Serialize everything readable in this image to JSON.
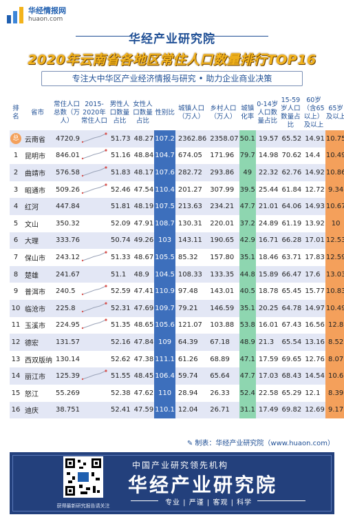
{
  "logo": {
    "cn": "华经情报网",
    "en": "huaon.com"
  },
  "brand": "华经产业研究院",
  "title": "2020年云南省各地区常住人口数量排行TOP16",
  "subtitle": "专注大中华区产业经济情报与研究 • 助力企业商业决策",
  "headers": {
    "rank": "排名",
    "city": "省市",
    "pop": "常住人口总数（万人）",
    "trend": "2015-2020年常住人口",
    "male": "男性人口数量占比",
    "female": "女性人口数量占比",
    "sex_ratio": "性别比",
    "urban": "城镇人口（万人）",
    "rural": "乡村人口（万人）",
    "urb_rate": "城镇化率",
    "age0": "0-14岁人口数量占比",
    "age15": "15-59岁人口数量占比",
    "age60": "60岁（含65以上）及以上",
    "age65": "65岁及以上"
  },
  "rows": [
    {
      "rank": "总",
      "city": "云南省",
      "pop": "4720.9",
      "male": "51.73",
      "female": "48.27",
      "sex_ratio": "107.2",
      "urban": "2362.86",
      "rural": "2358.07",
      "urb_rate": "50.1",
      "age0": "19.57",
      "age15": "65.52",
      "age60": "14.91",
      "age65": "10.75",
      "spark": true
    },
    {
      "rank": "1",
      "city": "昆明市",
      "pop": "846.01",
      "male": "51.16",
      "female": "48.84",
      "sex_ratio": "104.7",
      "urban": "674.05",
      "rural": "171.96",
      "urb_rate": "79.7",
      "age0": "14.98",
      "age15": "70.62",
      "age60": "14.4",
      "age65": "10.49",
      "spark": true
    },
    {
      "rank": "2",
      "city": "曲靖市",
      "pop": "576.58",
      "male": "51.83",
      "female": "48.17",
      "sex_ratio": "107.6",
      "urban": "282.72",
      "rural": "293.86",
      "urb_rate": "49",
      "age0": "22.32",
      "age15": "62.76",
      "age60": "14.92",
      "age65": "10.86",
      "spark": true
    },
    {
      "rank": "3",
      "city": "昭通市",
      "pop": "509.26",
      "male": "52.46",
      "female": "47.54",
      "sex_ratio": "110.4",
      "urban": "201.27",
      "rural": "307.99",
      "urb_rate": "39.5",
      "age0": "25.44",
      "age15": "61.84",
      "age60": "12.72",
      "age65": "9.34",
      "spark": true
    },
    {
      "rank": "4",
      "city": "红河",
      "pop": "447.84",
      "male": "51.81",
      "female": "48.19",
      "sex_ratio": "107.5",
      "urban": "213.63",
      "rural": "234.21",
      "urb_rate": "47.7",
      "age0": "21.01",
      "age15": "64.06",
      "age60": "14.93",
      "age65": "10.67",
      "spark": false
    },
    {
      "rank": "5",
      "city": "文山",
      "pop": "350.32",
      "male": "52.09",
      "female": "47.91",
      "sex_ratio": "108.7",
      "urban": "130.31",
      "rural": "220.01",
      "urb_rate": "37.2",
      "age0": "24.89",
      "age15": "61.19",
      "age60": "13.92",
      "age65": "10",
      "spark": false
    },
    {
      "rank": "6",
      "city": "大理",
      "pop": "333.76",
      "male": "50.74",
      "female": "49.26",
      "sex_ratio": "103",
      "urban": "143.11",
      "rural": "190.65",
      "urb_rate": "42.9",
      "age0": "16.71",
      "age15": "66.28",
      "age60": "17.01",
      "age65": "12.53",
      "spark": false
    },
    {
      "rank": "7",
      "city": "保山市",
      "pop": "243.12",
      "male": "51.33",
      "female": "48.67",
      "sex_ratio": "105.5",
      "urban": "85.32",
      "rural": "157.80",
      "urb_rate": "35.1",
      "age0": "18.46",
      "age15": "63.71",
      "age60": "17.83",
      "age65": "12.59",
      "spark": true
    },
    {
      "rank": "8",
      "city": "楚雄",
      "pop": "241.67",
      "male": "51.1",
      "female": "48.9",
      "sex_ratio": "104.5",
      "urban": "108.33",
      "rural": "133.35",
      "urb_rate": "44.8",
      "age0": "15.89",
      "age15": "66.47",
      "age60": "17.6",
      "age65": "13.03",
      "spark": false
    },
    {
      "rank": "9",
      "city": "普洱市",
      "pop": "240.5",
      "male": "52.59",
      "female": "47.41",
      "sex_ratio": "110.9",
      "urban": "97.48",
      "rural": "143.01",
      "urb_rate": "40.5",
      "age0": "18.78",
      "age15": "65.45",
      "age60": "15.77",
      "age65": "10.83",
      "spark": true
    },
    {
      "rank": "10",
      "city": "临沧市",
      "pop": "225.8",
      "male": "52.31",
      "female": "47.69",
      "sex_ratio": "109.7",
      "urban": "79.21",
      "rural": "146.59",
      "urb_rate": "35.1",
      "age0": "20.25",
      "age15": "64.78",
      "age60": "14.97",
      "age65": "10.49",
      "spark": true
    },
    {
      "rank": "11",
      "city": "玉溪市",
      "pop": "224.95",
      "male": "51.35",
      "female": "48.65",
      "sex_ratio": "105.6",
      "urban": "121.07",
      "rural": "103.88",
      "urb_rate": "53.8",
      "age0": "16.01",
      "age15": "67.43",
      "age60": "16.56",
      "age65": "12.8",
      "spark": true
    },
    {
      "rank": "12",
      "city": "德宏",
      "pop": "131.57",
      "male": "52.16",
      "female": "47.84",
      "sex_ratio": "109",
      "urban": "64.39",
      "rural": "67.18",
      "urb_rate": "48.9",
      "age0": "21.3",
      "age15": "65.54",
      "age60": "13.16",
      "age65": "8.52",
      "spark": false
    },
    {
      "rank": "13",
      "city": "西双版纳",
      "pop": "130.14",
      "male": "52.62",
      "female": "47.38",
      "sex_ratio": "111.1",
      "urban": "61.26",
      "rural": "68.89",
      "urb_rate": "47.1",
      "age0": "17.59",
      "age15": "69.65",
      "age60": "12.76",
      "age65": "8.07",
      "spark": false
    },
    {
      "rank": "14",
      "city": "丽江市",
      "pop": "125.39",
      "male": "51.55",
      "female": "48.45",
      "sex_ratio": "106.4",
      "urban": "59.74",
      "rural": "65.64",
      "urb_rate": "47.7",
      "age0": "17.03",
      "age15": "68.43",
      "age60": "14.54",
      "age65": "10.6",
      "spark": true
    },
    {
      "rank": "15",
      "city": "怒江",
      "pop": "55.269",
      "male": "52.38",
      "female": "47.62",
      "sex_ratio": "110",
      "urban": "28.94",
      "rural": "26.33",
      "urb_rate": "52.4",
      "age0": "22.58",
      "age15": "65.29",
      "age60": "12.1",
      "age65": "8.39",
      "spark": false
    },
    {
      "rank": "16",
      "city": "迪庆",
      "pop": "38.751",
      "male": "52.41",
      "female": "47.59",
      "sex_ratio": "110.1",
      "urban": "12.04",
      "rural": "26.71",
      "urb_rate": "31.1",
      "age0": "17.49",
      "age15": "69.82",
      "age60": "12.69",
      "age65": "9.17",
      "spark": false
    }
  ],
  "source": "制表：华经产业研究院（www.huaon.com）",
  "footer": {
    "line1": "中国产业研究领先机构",
    "line2": "华经产业研究院",
    "line3": "专业 | 严谨 | 客观 | 科学",
    "qr_caption": "获得最新研究报告请关注"
  },
  "colors": {
    "primary": "#1f4f95",
    "title": "#f3b31b",
    "sex_ratio": "#3d6fbc",
    "urb_rate": "#8ed6b0",
    "age65": "#f4a05b",
    "band": "#e3e7f5",
    "footer": "#23407c"
  }
}
